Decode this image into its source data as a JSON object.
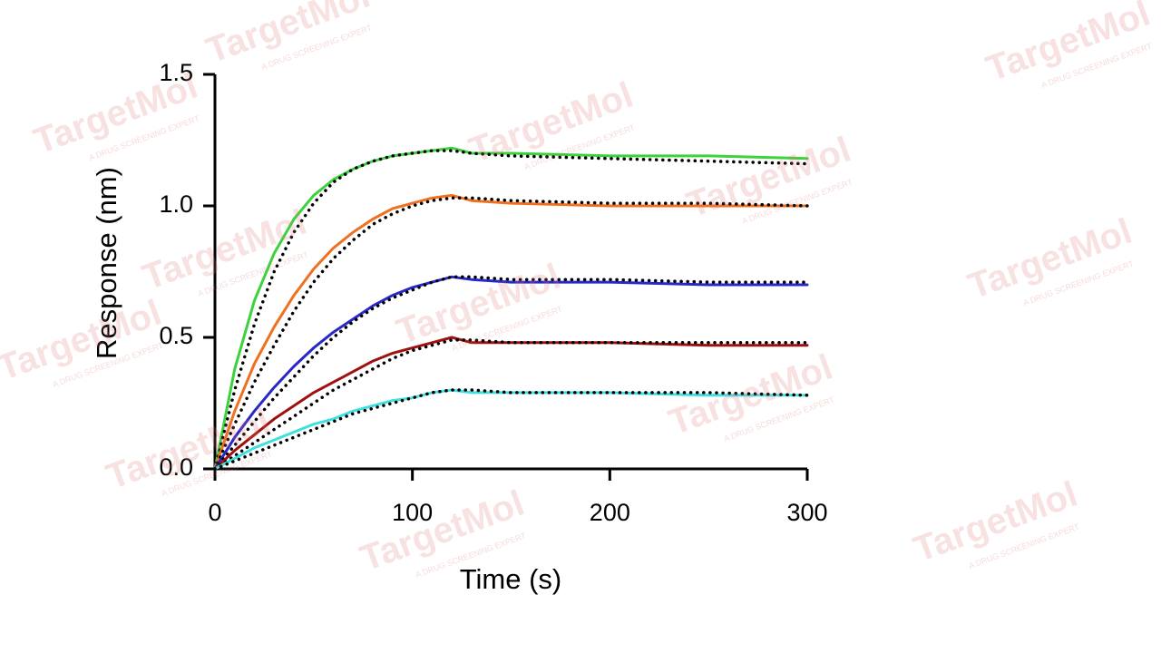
{
  "chart_data": {
    "type": "line",
    "xlabel": "Time (s)",
    "ylabel": "Response (nm)",
    "x": [
      0,
      10,
      20,
      30,
      40,
      50,
      60,
      70,
      80,
      90,
      100,
      110,
      120,
      130,
      150,
      200,
      250,
      300
    ],
    "series": [
      {
        "color": "#3cd23c",
        "style": "solid",
        "values": [
          0,
          0.38,
          0.64,
          0.82,
          0.95,
          1.04,
          1.1,
          1.14,
          1.17,
          1.19,
          1.2,
          1.21,
          1.22,
          1.2,
          1.2,
          1.19,
          1.19,
          1.18
        ]
      },
      {
        "color": "#000000",
        "style": "dotted",
        "values": [
          0,
          0.3,
          0.55,
          0.75,
          0.9,
          1.01,
          1.09,
          1.14,
          1.17,
          1.19,
          1.2,
          1.21,
          1.21,
          1.2,
          1.19,
          1.18,
          1.17,
          1.16
        ]
      },
      {
        "color": "#f07020",
        "style": "solid",
        "values": [
          0,
          0.22,
          0.4,
          0.54,
          0.66,
          0.76,
          0.84,
          0.9,
          0.95,
          0.99,
          1.01,
          1.03,
          1.04,
          1.02,
          1.01,
          1.0,
          1.0,
          1.0
        ]
      },
      {
        "color": "#000000",
        "style": "dotted",
        "values": [
          0,
          0.17,
          0.33,
          0.47,
          0.6,
          0.71,
          0.8,
          0.87,
          0.93,
          0.97,
          1.0,
          1.02,
          1.03,
          1.03,
          1.02,
          1.01,
          1.01,
          1.0
        ]
      },
      {
        "color": "#2828c8",
        "style": "solid",
        "values": [
          0,
          0.12,
          0.22,
          0.31,
          0.39,
          0.46,
          0.52,
          0.57,
          0.62,
          0.66,
          0.69,
          0.71,
          0.73,
          0.72,
          0.71,
          0.71,
          0.7,
          0.7
        ]
      },
      {
        "color": "#000000",
        "style": "dotted",
        "values": [
          0,
          0.09,
          0.18,
          0.27,
          0.35,
          0.43,
          0.5,
          0.56,
          0.61,
          0.65,
          0.68,
          0.71,
          0.73,
          0.73,
          0.72,
          0.72,
          0.71,
          0.71
        ]
      },
      {
        "color": "#a01010",
        "style": "solid",
        "values": [
          0,
          0.07,
          0.13,
          0.19,
          0.24,
          0.29,
          0.33,
          0.37,
          0.41,
          0.44,
          0.46,
          0.48,
          0.5,
          0.48,
          0.48,
          0.48,
          0.47,
          0.47
        ]
      },
      {
        "color": "#000000",
        "style": "dotted",
        "values": [
          0,
          0.05,
          0.1,
          0.15,
          0.2,
          0.25,
          0.3,
          0.34,
          0.38,
          0.42,
          0.45,
          0.47,
          0.49,
          0.49,
          0.48,
          0.48,
          0.48,
          0.48
        ]
      },
      {
        "color": "#40e0e0",
        "style": "solid",
        "values": [
          0,
          0.04,
          0.08,
          0.11,
          0.14,
          0.17,
          0.19,
          0.22,
          0.24,
          0.26,
          0.27,
          0.29,
          0.3,
          0.29,
          0.29,
          0.29,
          0.28,
          0.28
        ]
      },
      {
        "color": "#000000",
        "style": "dotted",
        "values": [
          0,
          0.03,
          0.06,
          0.09,
          0.12,
          0.15,
          0.18,
          0.21,
          0.23,
          0.25,
          0.27,
          0.29,
          0.3,
          0.3,
          0.29,
          0.29,
          0.29,
          0.28
        ]
      }
    ],
    "xlim": [
      0,
      300
    ],
    "xticks": [
      0,
      100,
      200,
      300
    ],
    "ylim": [
      0,
      1.5
    ],
    "yticks": [
      {
        "value": 0,
        "label": "0.0"
      },
      0.5,
      {
        "value": 1,
        "label": "1.0"
      },
      1.5
    ],
    "grid": false
  },
  "watermark": {
    "brand": "TargetMol",
    "tagline": "A DRUG SCREENING EXPERT"
  }
}
